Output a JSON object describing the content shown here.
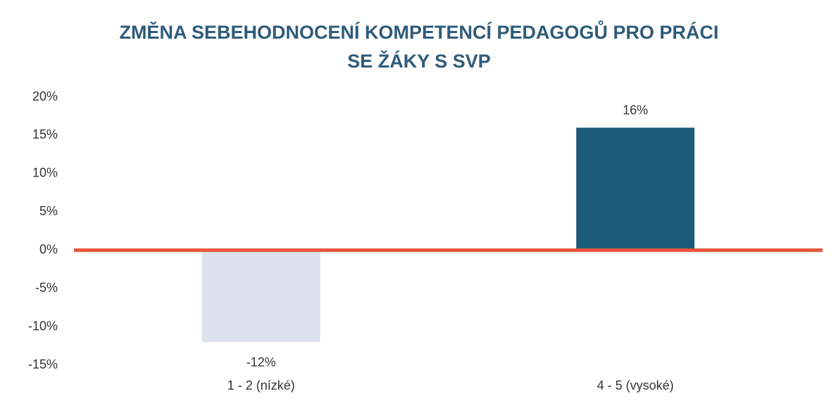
{
  "chart_data": {
    "type": "bar",
    "title": [
      "ZMĚNA SEBEHODNOCENÍ KOMPETENCÍ PEDAGOGŮ PRO PRÁCI",
      "SE ŽÁKY S SVP"
    ],
    "categories": [
      "1 - 2 (nízké)",
      "4 - 5 (vysoké)"
    ],
    "values": [
      -12,
      16
    ],
    "value_labels": [
      "-12%",
      "16%"
    ],
    "colors": [
      "#dde2f0",
      "#1b5a78"
    ],
    "zero_line_color": "#e8553a",
    "ylim": [
      -15,
      20
    ],
    "yticks": [
      {
        "value": -15,
        "label": "-15%"
      },
      {
        "value": -10,
        "label": "-10%"
      },
      {
        "value": -5,
        "label": "-5%"
      },
      {
        "value": 0,
        "label": "0%"
      },
      {
        "value": 5,
        "label": "5%"
      },
      {
        "value": 10,
        "label": "10%"
      },
      {
        "value": 15,
        "label": "15%"
      },
      {
        "value": 20,
        "label": "20%"
      }
    ],
    "grid": false
  }
}
